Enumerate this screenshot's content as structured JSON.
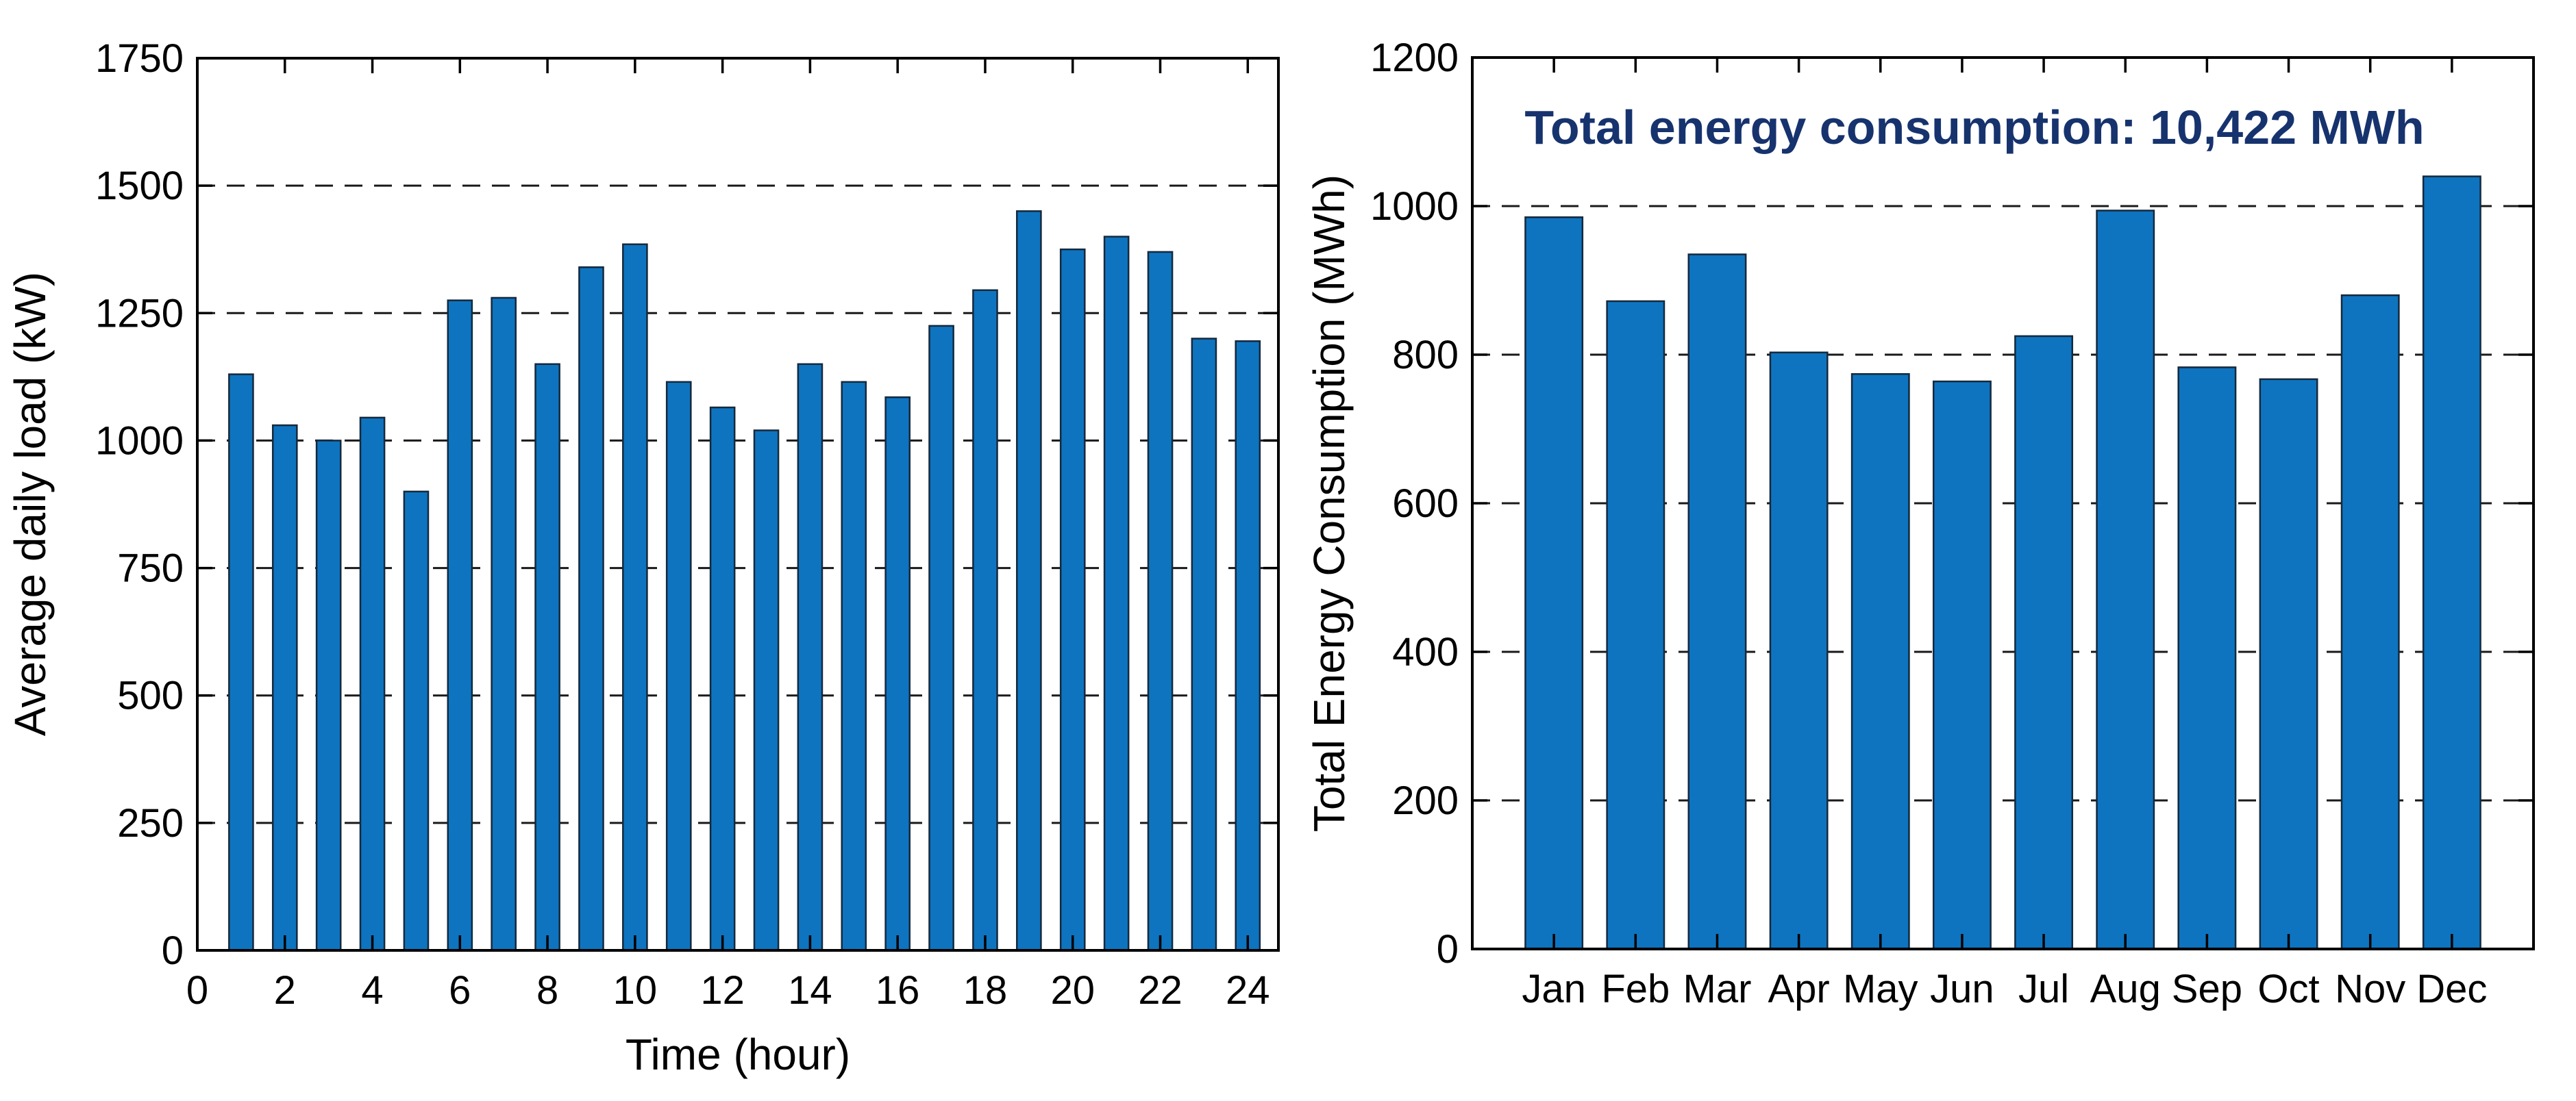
{
  "figure": {
    "background": "#ffffff"
  },
  "colors": {
    "bar_fill": "#0E74BF",
    "bar_edge": "#15293d",
    "axis": "#000000",
    "grid": "#1a1a1a",
    "tick_text": "#000000",
    "annotation_text": "#16336E"
  },
  "chart_data": [
    {
      "type": "bar",
      "name": "hourly-average-daily-load",
      "title": "",
      "xlabel": "Time (hour)",
      "ylabel": "Average daily load (kW)",
      "x": [
        1,
        2,
        3,
        4,
        5,
        6,
        7,
        8,
        9,
        10,
        11,
        12,
        13,
        14,
        15,
        16,
        17,
        18,
        19,
        20,
        21,
        22,
        23,
        24
      ],
      "values": [
        1130,
        1030,
        1000,
        1045,
        900,
        1275,
        1280,
        1150,
        1340,
        1385,
        1115,
        1065,
        1020,
        1150,
        1115,
        1085,
        1225,
        1295,
        1450,
        1375,
        1400,
        1370,
        1200,
        1195
      ],
      "xlim": [
        0,
        24.7
      ],
      "ylim": [
        0,
        1750
      ],
      "xticks": [
        0,
        2,
        4,
        6,
        8,
        10,
        12,
        14,
        16,
        18,
        20,
        22,
        24
      ],
      "yticks": [
        0,
        250,
        500,
        750,
        1000,
        1250,
        1500,
        1750
      ],
      "grid": "horizontal-dashed",
      "legend": "none"
    },
    {
      "type": "bar",
      "name": "monthly-total-energy-consumption",
      "annotation": {
        "text": "Total energy consumption: 10,422 MWh"
      },
      "xlabel": "",
      "ylabel": "Total Energy Consumption (MWh)",
      "categories": [
        "Jan",
        "Feb",
        "Mar",
        "Apr",
        "May",
        "Jun",
        "Jul",
        "Aug",
        "Sep",
        "Oct",
        "Nov",
        "Dec"
      ],
      "values": [
        985,
        872,
        935,
        803,
        774,
        764,
        825,
        994,
        783,
        767,
        880,
        1040
      ],
      "ylim": [
        0,
        1200
      ],
      "yticks": [
        0,
        200,
        400,
        600,
        800,
        1000,
        1200
      ],
      "grid": "horizontal-dashed",
      "legend": "none"
    }
  ]
}
